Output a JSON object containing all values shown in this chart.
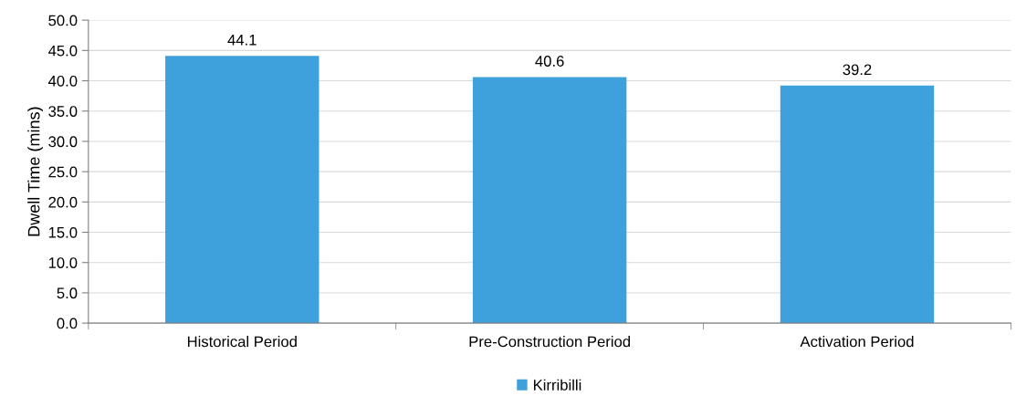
{
  "chart_data": {
    "type": "bar",
    "ylabel": "Dwell Time (mins)",
    "categories": [
      "Historical Period",
      "Pre-Construction Period",
      "Activation Period"
    ],
    "series": [
      {
        "name": "Kirribilli",
        "color": "#3fa1dc",
        "values": [
          44.1,
          40.6,
          39.2
        ]
      }
    ],
    "ylim": [
      0,
      50
    ],
    "yticks": [
      {
        "value": 0,
        "label": "0.0"
      },
      {
        "value": 5,
        "label": "5.0"
      },
      {
        "value": 10,
        "label": "10.0"
      },
      {
        "value": 15,
        "label": "15.0"
      },
      {
        "value": 20,
        "label": "20.0"
      },
      {
        "value": 25,
        "label": "25.0"
      },
      {
        "value": 30,
        "label": "30.0"
      },
      {
        "value": 35,
        "label": "35.0"
      },
      {
        "value": 40,
        "label": "40.0"
      },
      {
        "value": 45,
        "label": "45.0"
      },
      {
        "value": 50,
        "label": "50.0"
      }
    ],
    "grid": "y",
    "legend": "bottom",
    "data_labels": true
  }
}
